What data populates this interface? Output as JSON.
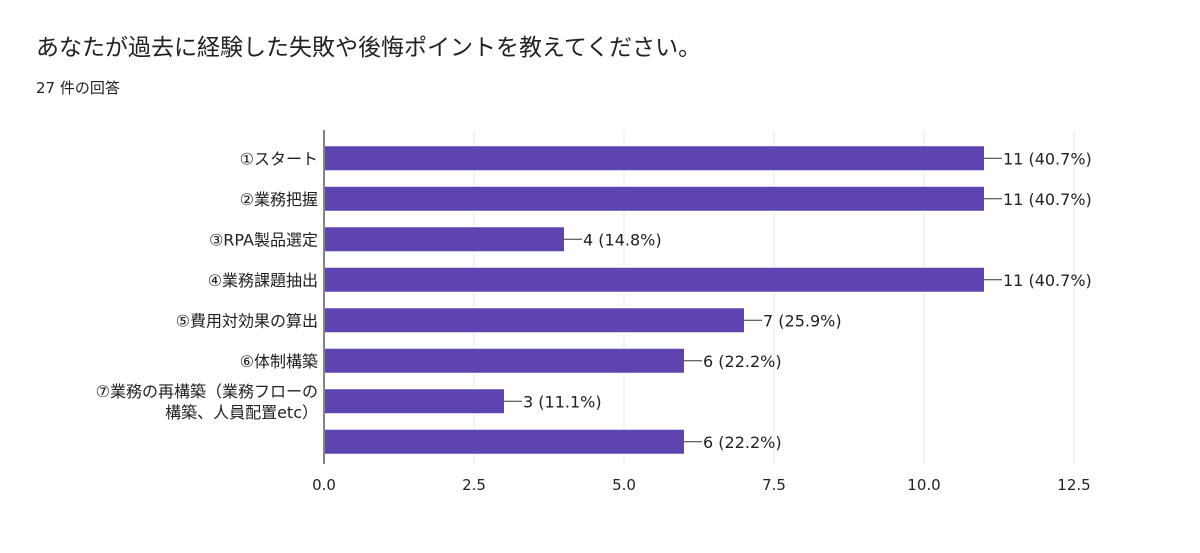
{
  "question": {
    "title": "あなたが過去に経験した失敗や後悔ポイントを教えてください。",
    "response_count": "27 件の回答"
  },
  "colors": {
    "bar": "#5e44b1",
    "grid": "#e8e8e8",
    "axis": "#333333",
    "text": "#202124"
  },
  "chart_data": {
    "type": "bar",
    "orientation": "horizontal",
    "categories": [
      "①スタート",
      "②業務把握",
      "③RPA製品選定",
      "④業務課題抽出",
      "⑤費用対効果の算出",
      "⑥体制構築",
      "⑦業務の再構築（業務フローの構築、人員配置etc）",
      ""
    ],
    "category_lines": [
      [
        "①スタート"
      ],
      [
        "②業務把握"
      ],
      [
        "③RPA製品選定"
      ],
      [
        "④業務課題抽出"
      ],
      [
        "⑤費用対効果の算出"
      ],
      [
        "⑥体制構築"
      ],
      [
        "⑦業務の再構築（業務フローの",
        "構築、人員配置etc）"
      ],
      []
    ],
    "values": [
      11,
      11,
      4,
      11,
      7,
      6,
      3,
      6
    ],
    "data_labels": [
      "11 (40.7%)",
      "11 (40.7%)",
      "4 (14.8%)",
      "11 (40.7%)",
      "7 (25.9%)",
      "6 (22.2%)",
      "3 (11.1%)",
      "6 (22.2%)"
    ],
    "xlim": [
      0,
      12.5
    ],
    "xticks": [
      "0.0",
      "2.5",
      "5.0",
      "7.5",
      "10.0",
      "12.5"
    ],
    "xtick_values": [
      0,
      2.5,
      5,
      7.5,
      10,
      12.5
    ],
    "grid": true,
    "legend": "none",
    "title": "",
    "xlabel": "",
    "ylabel": ""
  }
}
